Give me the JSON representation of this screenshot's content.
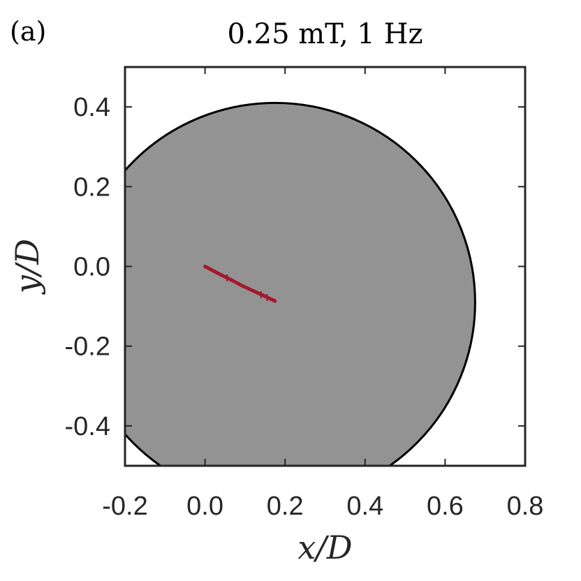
{
  "panel_label": "(a)",
  "chart_data": {
    "type": "line",
    "title": "0.25 mT, 1 Hz",
    "xlabel": "x/D",
    "ylabel": "y/D",
    "xlim": [
      -0.2,
      0.8
    ],
    "ylim": [
      -0.5,
      0.5
    ],
    "xticks": [
      -0.2,
      0.0,
      0.2,
      0.4,
      0.6,
      0.8
    ],
    "xtick_labels": [
      "-0.2",
      "0.0",
      "0.2",
      "0.4",
      "0.6",
      "0.8"
    ],
    "yticks": [
      -0.4,
      -0.2,
      0.0,
      0.2,
      0.4
    ],
    "ytick_labels": [
      "-0.4",
      "-0.2",
      "0.0",
      "0.2",
      "0.4"
    ],
    "grid": false,
    "shapes": [
      {
        "type": "circle",
        "center": [
          0.175,
          -0.09
        ],
        "radius": 0.5,
        "fill": "#939393",
        "stroke": "#000000"
      }
    ],
    "series": [
      {
        "color": "#a3192c",
        "x": [
          0.0,
          0.03,
          0.06,
          0.09,
          0.12,
          0.15,
          0.175
        ],
        "y": [
          0.0,
          -0.016,
          -0.031,
          -0.047,
          -0.061,
          -0.075,
          -0.087
        ],
        "markers_x": [
          0.055,
          0.14,
          0.155
        ],
        "markers_y": [
          -0.029,
          -0.071,
          -0.078
        ]
      }
    ]
  }
}
